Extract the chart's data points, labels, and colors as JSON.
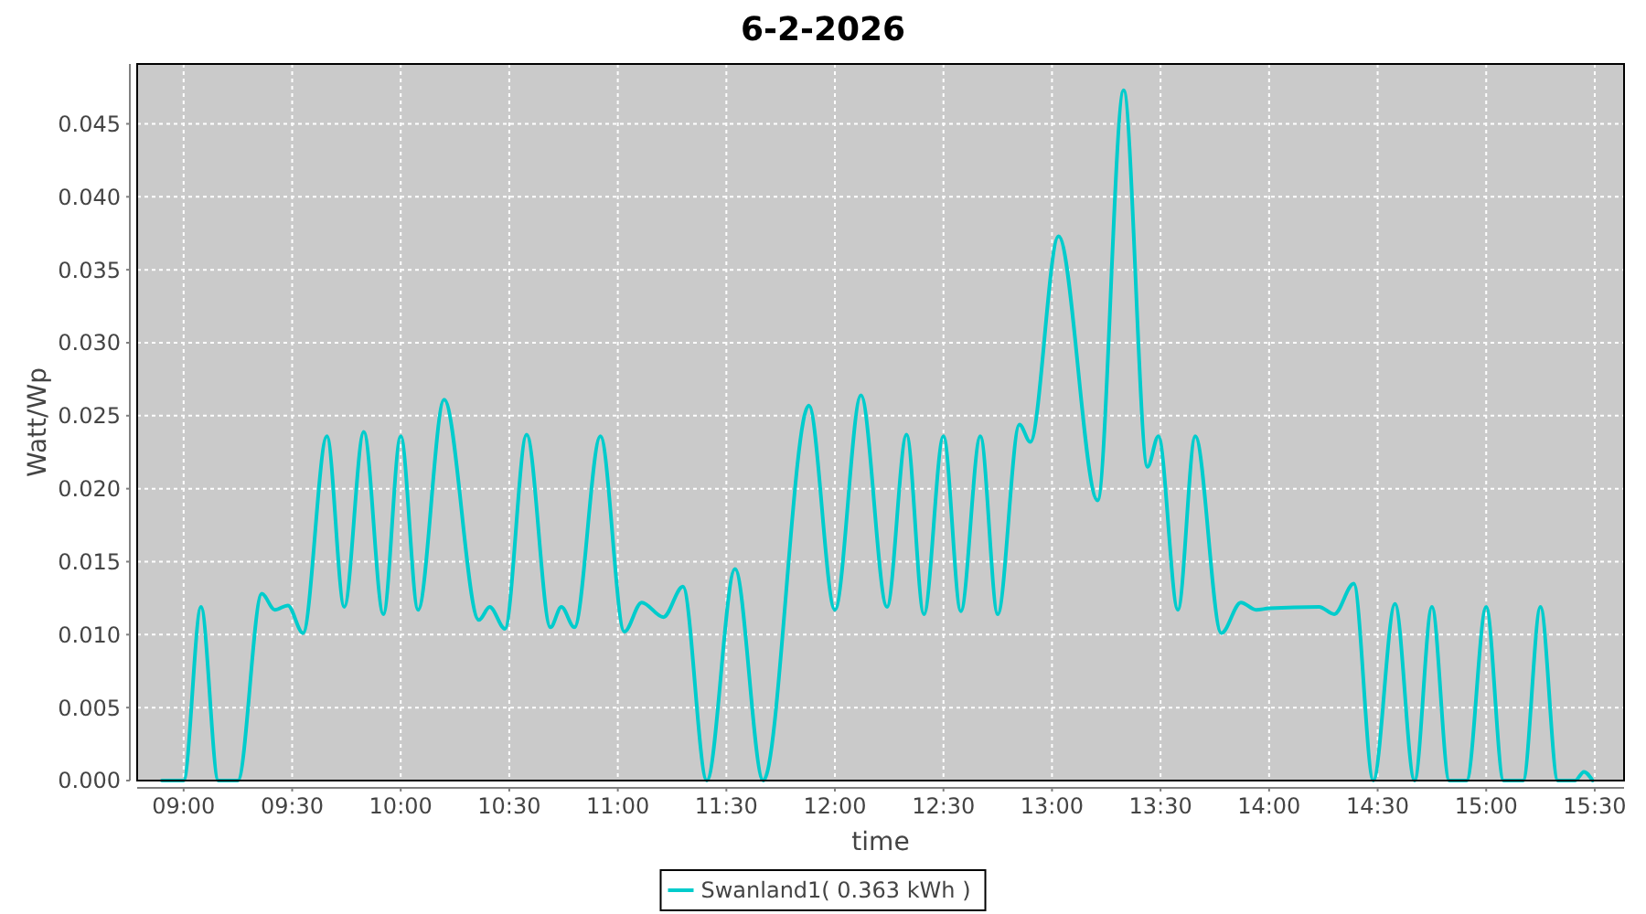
{
  "chart_data": {
    "type": "line",
    "title": "6-2-2026",
    "xlabel": "time",
    "ylabel": "Watt/Wp",
    "xlim": [
      8.786,
      15.635
    ],
    "ylim": [
      0,
      0.0491
    ],
    "xticks": [
      {
        "value": 9,
        "label": "09:00"
      },
      {
        "value": 9.5,
        "label": "09:30"
      },
      {
        "value": 10,
        "label": "10:00"
      },
      {
        "value": 10.5,
        "label": "10:30"
      },
      {
        "value": 11,
        "label": "11:00"
      },
      {
        "value": 11.5,
        "label": "11:30"
      },
      {
        "value": 12,
        "label": "12:00"
      },
      {
        "value": 12.5,
        "label": "12:30"
      },
      {
        "value": 13,
        "label": "13:00"
      },
      {
        "value": 13.5,
        "label": "13:30"
      },
      {
        "value": 14,
        "label": "14:00"
      },
      {
        "value": 14.5,
        "label": "14:30"
      },
      {
        "value": 15,
        "label": "15:00"
      },
      {
        "value": 15.5,
        "label": "15:30"
      }
    ],
    "yticks": [
      {
        "value": 0,
        "label": "0.000"
      },
      0.005,
      {
        "value": 0.01,
        "label": "0.010"
      },
      0.015,
      {
        "value": 0.02,
        "label": "0.020"
      },
      0.025,
      {
        "value": 0.03,
        "label": "0.030"
      },
      0.035,
      {
        "value": 0.04,
        "label": "0.040"
      },
      0.045
    ],
    "grid": true,
    "legend": "bottom",
    "line_style": "solid",
    "x": [
      8.9,
      9.0,
      9.08,
      9.16,
      9.25,
      9.36,
      9.42,
      9.48,
      9.55,
      9.66,
      9.74,
      9.83,
      9.92,
      10.0,
      10.08,
      10.2,
      10.36,
      10.41,
      10.48,
      10.58,
      10.69,
      10.74,
      10.8,
      10.92,
      11.03,
      11.11,
      11.21,
      11.3,
      11.41,
      11.54,
      11.67,
      11.88,
      12.0,
      12.12,
      12.24,
      12.33,
      12.41,
      12.5,
      12.58,
      12.67,
      12.75,
      12.85,
      12.9,
      13.03,
      13.21,
      13.33,
      13.44,
      13.49,
      13.58,
      13.66,
      13.78,
      13.87,
      13.94,
      14.0,
      14.23,
      14.3,
      14.39,
      14.48,
      14.58,
      14.67,
      14.75,
      14.83,
      14.91,
      15.0,
      15.08,
      15.17,
      15.25,
      15.33,
      15.41,
      15.45,
      15.49
    ],
    "series": [
      {
        "name": "Swanland1( 0.363 kWh )",
        "color": "#00cccc",
        "values": [
          0,
          0,
          0.0119,
          0,
          0,
          0.0128,
          0.0117,
          0.012,
          0.0101,
          0.0236,
          0.0119,
          0.0239,
          0.0114,
          0.0236,
          0.0117,
          0.0261,
          0.011,
          0.0119,
          0.0104,
          0.0237,
          0.0105,
          0.0119,
          0.0105,
          0.0236,
          0.0102,
          0.0122,
          0.0112,
          0.0133,
          0,
          0.0145,
          0,
          0.0257,
          0.0117,
          0.0264,
          0.0119,
          0.0237,
          0.0114,
          0.0236,
          0.0116,
          0.0236,
          0.0114,
          0.0244,
          0.0232,
          0.0373,
          0.0192,
          0.0473,
          0.0215,
          0.0236,
          0.0117,
          0.0236,
          0.0101,
          0.0122,
          0.0117,
          0.0118,
          0.0119,
          0.0114,
          0.0135,
          0,
          0.0121,
          0,
          0.0119,
          0,
          0,
          0.0119,
          0,
          0,
          0.0119,
          0,
          0,
          0.0006,
          0
        ]
      }
    ]
  }
}
